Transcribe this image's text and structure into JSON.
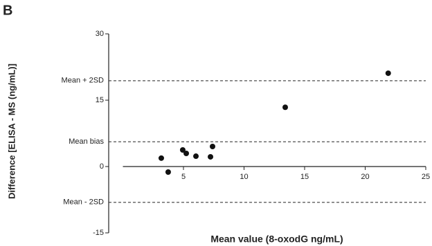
{
  "chart_data": {
    "type": "scatter",
    "panel_label": "B",
    "xlabel": "Mean value (8-oxodG ng/mL)",
    "ylabel": "Difference [ELISA - MS (ng/mL)]",
    "x": [
      3.17,
      3.74,
      4.94,
      5.23,
      6.03,
      7.23,
      7.4,
      13.4,
      21.9
    ],
    "values": [
      1.9,
      -1.25,
      3.75,
      2.97,
      2.34,
      2.19,
      4.53,
      13.4,
      21.1
    ],
    "color": "#111111",
    "xlim": [
      0,
      25
    ],
    "xticks": [
      5,
      10,
      15,
      20,
      25
    ],
    "ylim": [
      -15,
      30
    ],
    "yticks": [
      30,
      15,
      0,
      -15
    ],
    "reference_lines": [
      {
        "label": "Mean + 2SD",
        "value": 19.4
      },
      {
        "label": "Mean bias",
        "value": 5.6
      },
      {
        "label": "Mean - 2SD",
        "value": -8.1
      }
    ]
  }
}
